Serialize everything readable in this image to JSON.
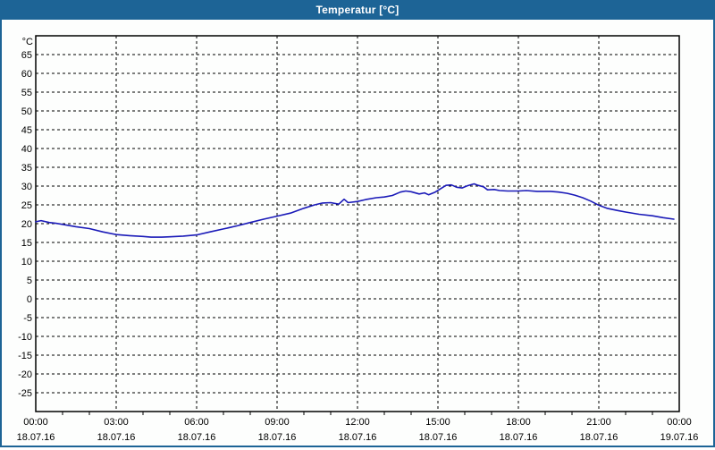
{
  "window": {
    "title": "Temperatur [°C]",
    "titlebar_color": "#1d6496",
    "border_color": "#1d6496",
    "content_background": "#fdfefd"
  },
  "chart_data": {
    "type": "line",
    "title": "Temperatur [°C]",
    "y_unit_label": "°C",
    "ylim": [
      -30,
      70
    ],
    "yticks": [
      65,
      60,
      55,
      50,
      45,
      40,
      35,
      30,
      25,
      20,
      15,
      10,
      5,
      0,
      -5,
      -10,
      -15,
      -20,
      -25
    ],
    "xlim_hours": [
      0,
      24
    ],
    "xticks": [
      {
        "hour": 0,
        "time": "00:00",
        "date": "18.07.16"
      },
      {
        "hour": 3,
        "time": "03:00",
        "date": "18.07.16"
      },
      {
        "hour": 6,
        "time": "06:00",
        "date": "18.07.16"
      },
      {
        "hour": 9,
        "time": "09:00",
        "date": "18.07.16"
      },
      {
        "hour": 12,
        "time": "12:00",
        "date": "18.07.16"
      },
      {
        "hour": 15,
        "time": "15:00",
        "date": "18.07.16"
      },
      {
        "hour": 18,
        "time": "18:00",
        "date": "18.07.16"
      },
      {
        "hour": 21,
        "time": "21:00",
        "date": "18.07.16"
      },
      {
        "hour": 24,
        "time": "00:00",
        "date": "19.07.16"
      }
    ],
    "minor_tick_every_hours": 1,
    "grid": true,
    "grid_color": "#000000",
    "axis_color": "#000000",
    "line_color": "#1a1ab8",
    "series": [
      {
        "name": "Temperatur",
        "points": [
          [
            0.0,
            20.5
          ],
          [
            0.2,
            20.8
          ],
          [
            0.5,
            20.3
          ],
          [
            0.75,
            20.1
          ],
          [
            1.0,
            19.8
          ],
          [
            1.5,
            19.2
          ],
          [
            2.0,
            18.7
          ],
          [
            2.5,
            17.8
          ],
          [
            3.0,
            17.1
          ],
          [
            3.5,
            16.8
          ],
          [
            4.0,
            16.6
          ],
          [
            4.3,
            16.4
          ],
          [
            4.7,
            16.4
          ],
          [
            5.0,
            16.5
          ],
          [
            5.5,
            16.7
          ],
          [
            6.0,
            17.0
          ],
          [
            6.5,
            17.8
          ],
          [
            7.0,
            18.6
          ],
          [
            7.5,
            19.4
          ],
          [
            8.0,
            20.3
          ],
          [
            8.5,
            21.2
          ],
          [
            9.0,
            22.0
          ],
          [
            9.5,
            22.8
          ],
          [
            10.0,
            24.1
          ],
          [
            10.4,
            25.0
          ],
          [
            10.7,
            25.5
          ],
          [
            11.0,
            25.6
          ],
          [
            11.3,
            25.2
          ],
          [
            11.5,
            26.5
          ],
          [
            11.65,
            25.6
          ],
          [
            12.0,
            25.9
          ],
          [
            12.3,
            26.4
          ],
          [
            12.7,
            26.9
          ],
          [
            13.0,
            27.1
          ],
          [
            13.3,
            27.5
          ],
          [
            13.6,
            28.4
          ],
          [
            13.8,
            28.7
          ],
          [
            14.0,
            28.5
          ],
          [
            14.3,
            27.9
          ],
          [
            14.5,
            28.2
          ],
          [
            14.65,
            27.7
          ],
          [
            14.9,
            28.4
          ],
          [
            15.1,
            29.3
          ],
          [
            15.3,
            30.2
          ],
          [
            15.5,
            30.3
          ],
          [
            15.7,
            29.7
          ],
          [
            15.9,
            29.5
          ],
          [
            16.1,
            30.1
          ],
          [
            16.35,
            30.6
          ],
          [
            16.5,
            30.2
          ],
          [
            16.7,
            29.8
          ],
          [
            16.85,
            29.0
          ],
          [
            17.1,
            29.1
          ],
          [
            17.3,
            28.8
          ],
          [
            17.6,
            28.7
          ],
          [
            18.0,
            28.7
          ],
          [
            18.3,
            28.8
          ],
          [
            18.7,
            28.6
          ],
          [
            19.2,
            28.6
          ],
          [
            19.5,
            28.4
          ],
          [
            19.8,
            28.1
          ],
          [
            20.1,
            27.6
          ],
          [
            20.4,
            26.9
          ],
          [
            20.7,
            26.0
          ],
          [
            21.0,
            24.9
          ],
          [
            21.3,
            24.1
          ],
          [
            21.7,
            23.5
          ],
          [
            22.0,
            23.1
          ],
          [
            22.5,
            22.5
          ],
          [
            23.0,
            22.1
          ],
          [
            23.4,
            21.6
          ],
          [
            23.8,
            21.2
          ]
        ]
      }
    ]
  }
}
